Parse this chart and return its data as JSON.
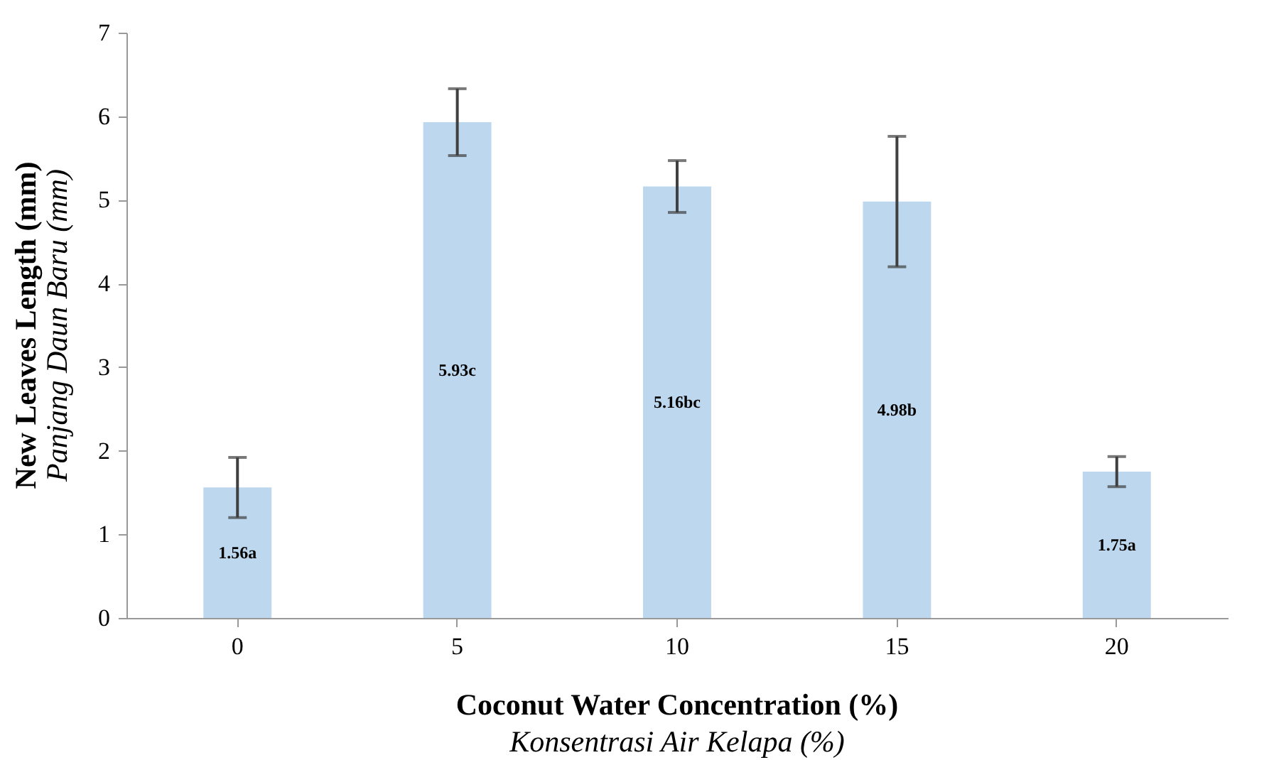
{
  "chart_data": {
    "type": "bar",
    "categories": [
      "0",
      "5",
      "10",
      "15",
      "20"
    ],
    "values": [
      1.56,
      5.93,
      5.16,
      4.98,
      1.75
    ],
    "errors": [
      0.36,
      0.4,
      0.31,
      0.78,
      0.18
    ],
    "value_labels": [
      "1.56a",
      "5.93c",
      "5.16bc",
      "4.98b",
      "1.75a"
    ],
    "color": "#bdd7ee",
    "xlabel": "Coconut Water Concentration (%)\nKonsentrasi Air Kelapa (%)",
    "ylabel": "New Leaves Length (mm)\nPanjang Daun Baru (mm)",
    "ylim": [
      0,
      7
    ],
    "yticks": [
      0,
      1,
      2,
      3,
      4,
      5,
      6,
      7
    ]
  }
}
